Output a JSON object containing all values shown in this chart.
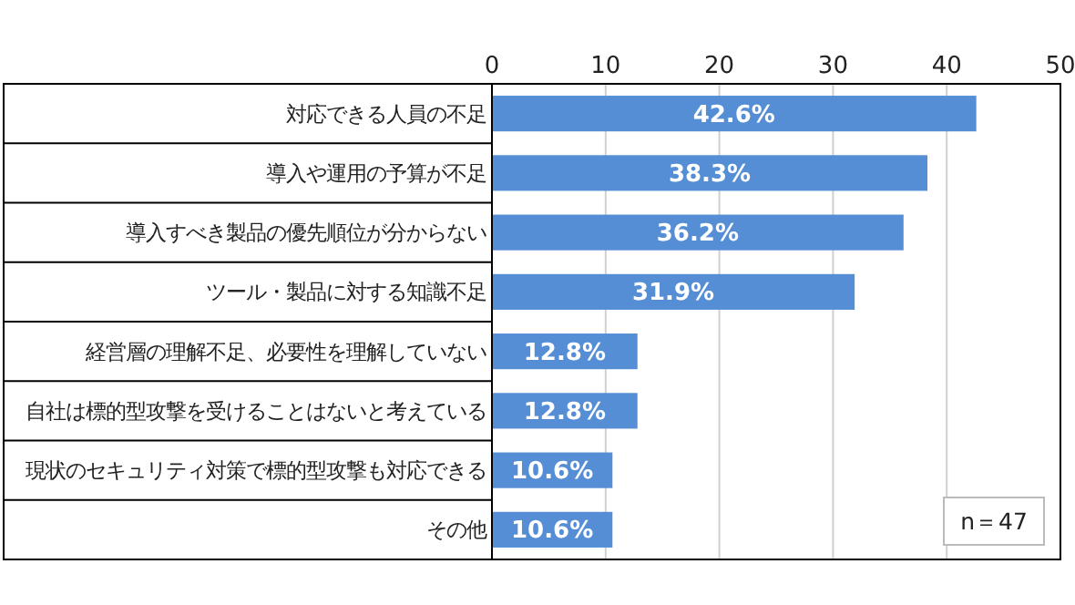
{
  "chart_data": {
    "type": "bar",
    "orientation": "horizontal",
    "categories": [
      "対応できる人員の不足",
      "導入や運用の予算が不足",
      "導入すべき製品の優先順位が分からない",
      "ツール・製品に対する知識不足",
      "経営層の理解不足、必要性を理解していない",
      "自社は標的型攻撃を受けることはないと考えている",
      "現状のセキュリティ対策で標的型攻撃も対応できる",
      "その他"
    ],
    "values": [
      42.6,
      38.3,
      36.2,
      31.9,
      12.8,
      12.8,
      10.6,
      10.6
    ],
    "value_labels": [
      "42.6%",
      "38.3%",
      "36.2%",
      "31.9%",
      "12.8%",
      "12.8%",
      "10.6%",
      "10.6%"
    ],
    "color": "#558ed5",
    "xlim": [
      0,
      50
    ],
    "xticks": [
      0,
      10,
      20,
      30,
      40,
      50
    ],
    "grid": "x",
    "annotations": [
      "n＝47"
    ]
  }
}
